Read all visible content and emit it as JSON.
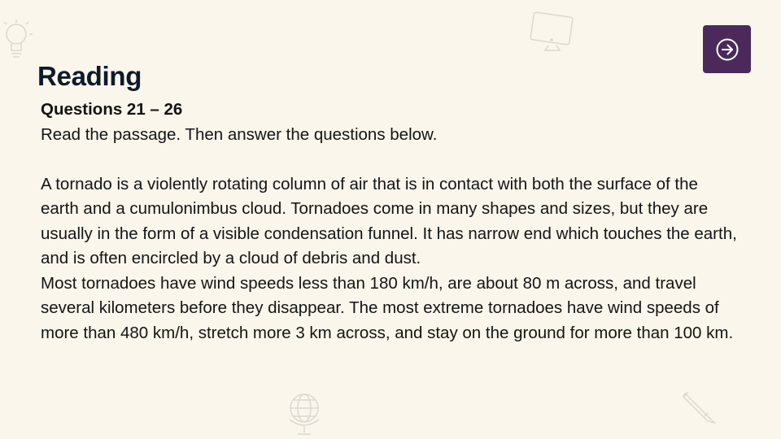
{
  "header": {
    "title": "Reading",
    "next_button": "arrow-right-circle-icon"
  },
  "content": {
    "question_range": "Questions 21 – 26",
    "instruction": "Read the passage. Then answer the questions below.",
    "paragraphs": [
      "A tornado is a violently rotating column of air that is in contact with both the surface of the earth and a cumulonimbus cloud. Tornadoes come in many shapes and sizes, but they are usually in the form of a visible condensation funnel. It has narrow end which touches the earth, and is often encircled by a cloud of debris and dust.",
      "Most tornadoes have wind speeds less than 180 km/h, are about 80 m across, and travel several kilometers before they disappear. The most extreme tornadoes have wind speeds of more than 480 km/h, stretch more 3 km across, and stay on the ground for more than 100 km."
    ]
  },
  "decorations": [
    "lightbulb-icon",
    "monitor-icon",
    "globe-icon",
    "pencil-icon"
  ],
  "colors": {
    "background": "#faf6ec",
    "button": "#4b2a5b",
    "title": "#0d1b2a"
  }
}
